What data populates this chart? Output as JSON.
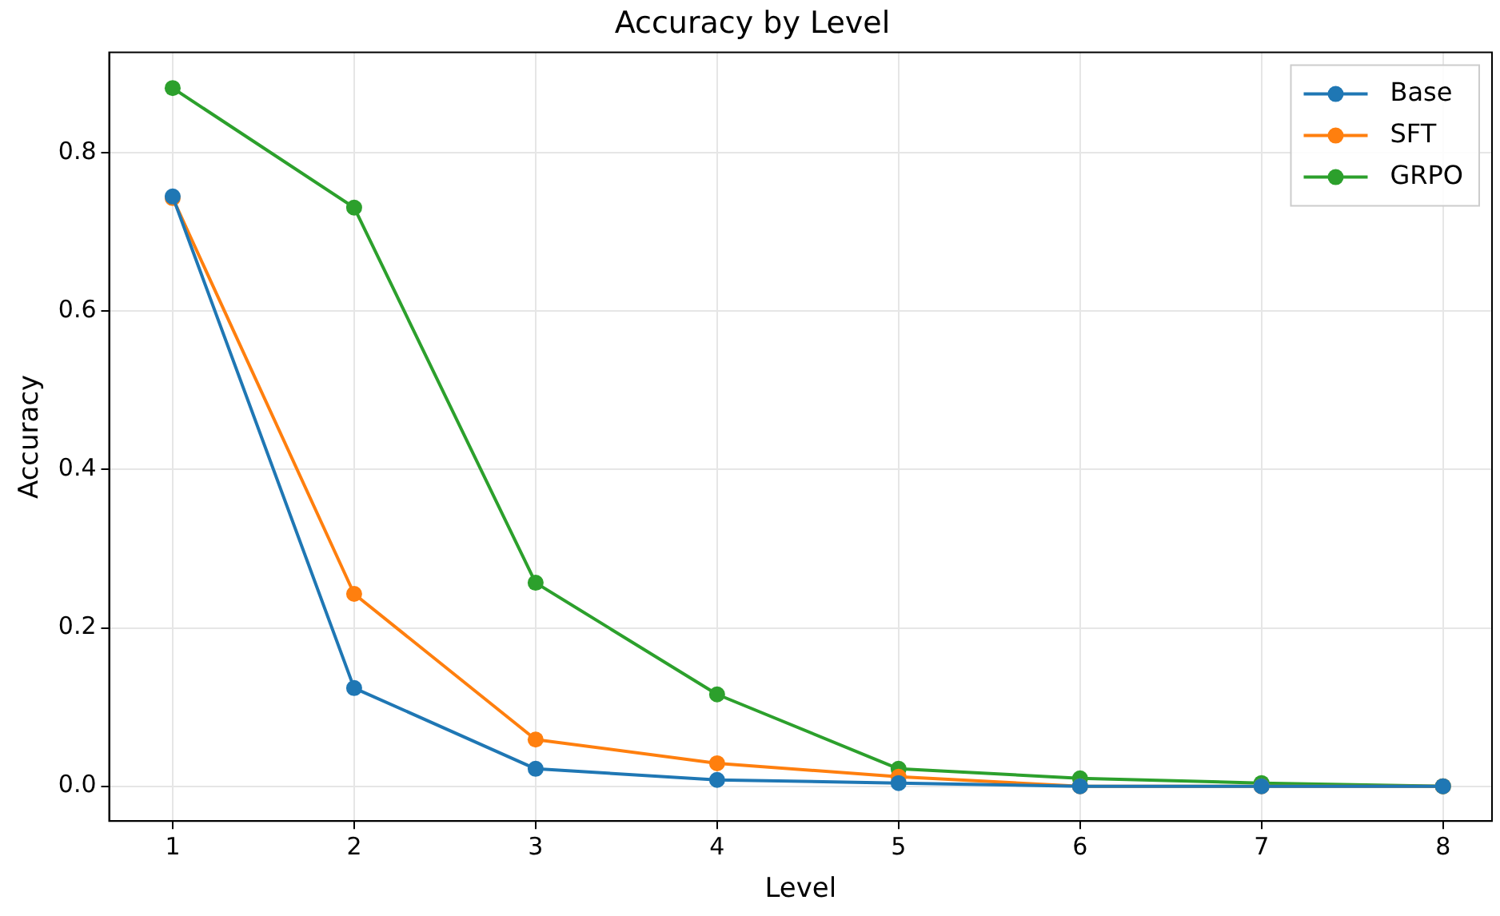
{
  "chart_data": {
    "type": "line",
    "title": "Accuracy by Level",
    "xlabel": "Level",
    "ylabel": "Accuracy",
    "x": [
      1,
      2,
      3,
      4,
      5,
      6,
      7,
      8
    ],
    "series": [
      {
        "name": "Base",
        "color": "#1f77b4",
        "values": [
          0.745,
          0.124,
          0.022,
          0.008,
          0.004,
          0,
          0,
          0
        ]
      },
      {
        "name": "SFT",
        "color": "#ff7f0e",
        "values": [
          0.743,
          0.243,
          0.059,
          0.029,
          0.012,
          0,
          0,
          0
        ]
      },
      {
        "name": "GRPO",
        "color": "#2ca02c",
        "values": [
          0.882,
          0.731,
          0.257,
          0.116,
          0.022,
          0.01,
          0.004,
          0
        ]
      }
    ],
    "xlim": [
      0.65,
      8.27
    ],
    "xticks": [
      1,
      2,
      3,
      4,
      5,
      6,
      7,
      8
    ],
    "ylim": [
      -0.044,
      0.927
    ],
    "yticks": [
      {
        "value": 0,
        "label": "0.0"
      },
      {
        "value": 0.2,
        "label": "0.2"
      },
      {
        "value": 0.4,
        "label": "0.4"
      },
      {
        "value": 0.6,
        "label": "0.6"
      },
      {
        "value": 0.8,
        "label": "0.8"
      }
    ],
    "grid": true,
    "legend": "top right",
    "marker": "circle",
    "line_style": "solid"
  }
}
